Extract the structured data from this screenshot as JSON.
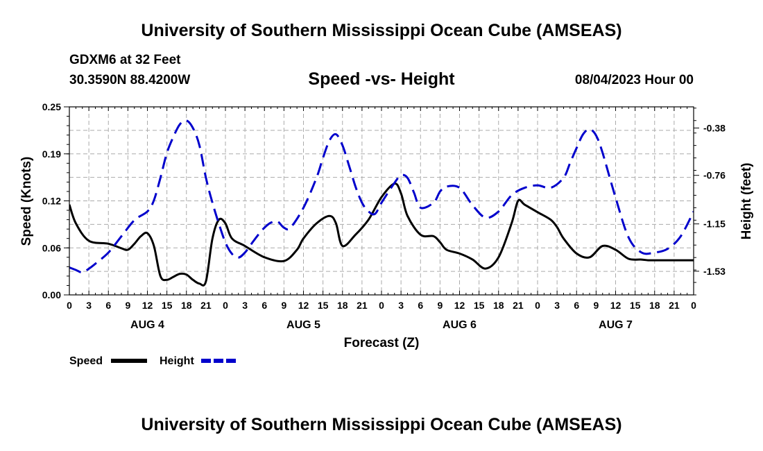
{
  "header": {
    "title": "University of Southern Mississippi Ocean Cube (AMSEAS)",
    "station": "GDXM6 at 32 Feet",
    "coords": "30.3590N  88.4200W",
    "subtitle": "Speed -vs- Height",
    "datetime": "08/04/2023 Hour 00"
  },
  "footer": {
    "title": "University of Southern Mississippi Ocean Cube (AMSEAS)"
  },
  "colors": {
    "speed": "#000000",
    "height": "#0000cc",
    "grid": "#aaaaaa"
  },
  "chart_data": {
    "type": "line",
    "xlabel": "Forecast (Z)",
    "ylabel_left": "Speed (Knots)",
    "ylabel_right": "Height (feet)",
    "xlim": [
      0,
      96
    ],
    "ylim_left": [
      0,
      0.25
    ],
    "ylim_right": [
      -1.72,
      -0.21
    ],
    "x_tick_labels": [
      "0",
      "3",
      "6",
      "9",
      "12",
      "15",
      "18",
      "21",
      "0",
      "3",
      "6",
      "9",
      "12",
      "15",
      "18",
      "21",
      "0",
      "3",
      "6",
      "9",
      "12",
      "15",
      "18",
      "21",
      "0",
      "3",
      "6",
      "9",
      "12",
      "15",
      "18",
      "21",
      "0"
    ],
    "day_labels": [
      {
        "label": "AUG 4",
        "x": 12
      },
      {
        "label": "AUG 5",
        "x": 36
      },
      {
        "label": "AUG 6",
        "x": 60
      },
      {
        "label": "AUG 7",
        "x": 84
      }
    ],
    "y_ticks_left": [
      "0.00",
      "0.06",
      "0.12",
      "0.19",
      "0.25"
    ],
    "y_ticks_left_values": [
      0,
      0.0625,
      0.125,
      0.1875,
      0.25
    ],
    "y_ticks_right": [
      "-0.38",
      "-0.76",
      "-1.15",
      "-1.53"
    ],
    "y_ticks_right_values": [
      -0.38,
      -0.76,
      -1.15,
      -1.53
    ],
    "legend": [
      {
        "name": "Speed",
        "style": "solid"
      },
      {
        "name": "Height",
        "style": "dashed"
      }
    ],
    "series": [
      {
        "name": "Speed",
        "axis": "left",
        "x": [
          0,
          1,
          3,
          6,
          8,
          9,
          10,
          11,
          12,
          13,
          14,
          15,
          16,
          17,
          18,
          19,
          20,
          21,
          22,
          23,
          24,
          25,
          27,
          30,
          33,
          35,
          36,
          38,
          40,
          41,
          42,
          44,
          46,
          48,
          50,
          51,
          52,
          54,
          56,
          57,
          58,
          60,
          62,
          64,
          66,
          68,
          69,
          70,
          72,
          74,
          75,
          76,
          78,
          80,
          82,
          84,
          86,
          88,
          89,
          90,
          91,
          92,
          94,
          96
        ],
        "y": [
          0.12,
          0.095,
          0.072,
          0.068,
          0.062,
          0.06,
          0.068,
          0.078,
          0.082,
          0.065,
          0.025,
          0.02,
          0.024,
          0.028,
          0.027,
          0.02,
          0.015,
          0.018,
          0.075,
          0.1,
          0.095,
          0.075,
          0.065,
          0.05,
          0.045,
          0.06,
          0.075,
          0.095,
          0.105,
          0.095,
          0.065,
          0.08,
          0.1,
          0.13,
          0.148,
          0.135,
          0.105,
          0.08,
          0.078,
          0.07,
          0.06,
          0.055,
          0.047,
          0.035,
          0.05,
          0.095,
          0.125,
          0.12,
          0.11,
          0.1,
          0.09,
          0.075,
          0.055,
          0.05,
          0.065,
          0.06,
          0.048,
          0.047,
          0.046,
          0.046,
          0.046,
          0.046,
          0.046,
          0.046
        ]
      },
      {
        "name": "Height",
        "axis": "right",
        "x": [
          0,
          1,
          2,
          3,
          4,
          6,
          8,
          10,
          12,
          13,
          14,
          15,
          16,
          17,
          18,
          19,
          20,
          21,
          22,
          23,
          24,
          25,
          26,
          27,
          28,
          29,
          30,
          31,
          32,
          33,
          34,
          36,
          38,
          39,
          40,
          41,
          42,
          43,
          44,
          45,
          46,
          47,
          48,
          50,
          51,
          52,
          53,
          54,
          56,
          57,
          58,
          60,
          62,
          64,
          66,
          68,
          70,
          72,
          74,
          76,
          77,
          78,
          79,
          80,
          81,
          82,
          84,
          86,
          88,
          90,
          92,
          94,
          96
        ],
        "y": [
          -1.5,
          -1.52,
          -1.54,
          -1.51,
          -1.47,
          -1.38,
          -1.25,
          -1.12,
          -1.05,
          -0.96,
          -0.78,
          -0.58,
          -0.45,
          -0.35,
          -0.32,
          -0.38,
          -0.52,
          -0.78,
          -0.98,
          -1.15,
          -1.3,
          -1.39,
          -1.42,
          -1.38,
          -1.31,
          -1.24,
          -1.18,
          -1.14,
          -1.13,
          -1.18,
          -1.18,
          -1.02,
          -0.78,
          -0.62,
          -0.48,
          -0.43,
          -0.52,
          -0.68,
          -0.85,
          -0.98,
          -1.05,
          -1.07,
          -0.98,
          -0.82,
          -0.76,
          -0.78,
          -0.9,
          -1.02,
          -0.98,
          -0.89,
          -0.85,
          -0.86,
          -1.0,
          -1.1,
          -1.05,
          -0.92,
          -0.86,
          -0.84,
          -0.86,
          -0.78,
          -0.66,
          -0.54,
          -0.43,
          -0.39,
          -0.44,
          -0.58,
          -0.94,
          -1.26,
          -1.38,
          -1.38,
          -1.35,
          -1.25,
          -1.05
        ]
      }
    ]
  }
}
